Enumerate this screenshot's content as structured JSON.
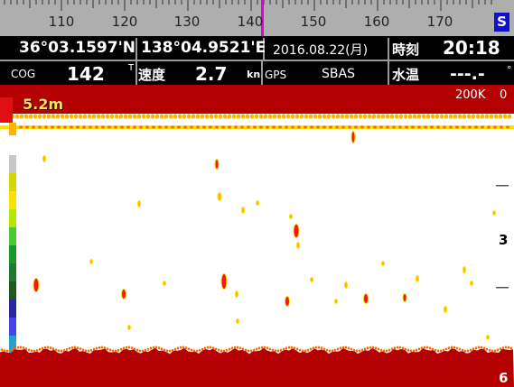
{
  "compass": {
    "labels": [
      "110",
      "120",
      "130",
      "140",
      "150",
      "160",
      "170"
    ],
    "heading_marker": "S"
  },
  "position": {
    "latitude": "36°03.1597'N",
    "longitude": "138°04.9521'E",
    "date": "2016.08.22(月)",
    "time_label": "時刻",
    "time": "20:18"
  },
  "nav": {
    "cog_label": "COG",
    "cog_value": "142",
    "speed_label": "速度",
    "speed_value": "2.7",
    "speed_unit": "kn",
    "gps_label": "GPS",
    "gps_mode": "SBAS",
    "temp_label": "水温",
    "temp_value": "---.-"
  },
  "sounder": {
    "bottom_depth": "5.2m",
    "frequency": "200K",
    "scale_top": "0",
    "scale_mid": "3",
    "scale_bottom": "6",
    "colors": [
      "#b40000",
      "#f01818",
      "#ff6a00",
      "#ffb400",
      "#ffe000",
      "#ffff80"
    ]
  }
}
